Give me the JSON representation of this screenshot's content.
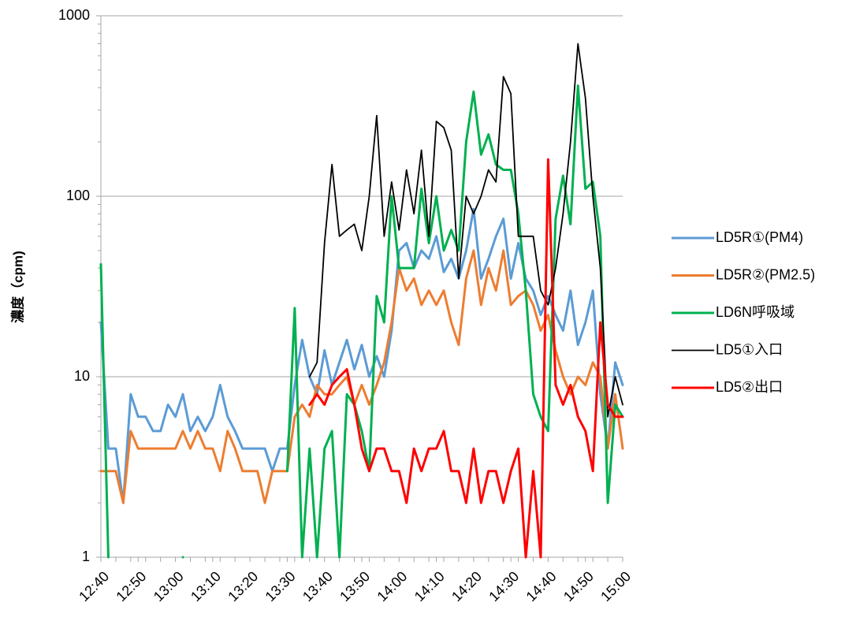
{
  "chart_data": {
    "type": "line",
    "y_label": "濃度（cpm)",
    "log_scale": true,
    "grid": true,
    "legend": "right",
    "ylim": [
      1,
      1000
    ],
    "yticks": [
      1,
      10,
      100,
      1000
    ],
    "categories": [
      "12:40",
      null,
      null,
      null,
      null,
      "12:50",
      null,
      null,
      null,
      null,
      "13:00",
      null,
      null,
      null,
      null,
      "13:10",
      null,
      null,
      null,
      null,
      "13:20",
      null,
      null,
      null,
      null,
      "13:30",
      null,
      null,
      null,
      null,
      "13:40",
      null,
      null,
      null,
      null,
      "13:50",
      null,
      null,
      null,
      null,
      "14:00",
      null,
      null,
      null,
      null,
      "14:10",
      null,
      null,
      null,
      null,
      "14:20",
      null,
      null,
      null,
      null,
      "14:30",
      null,
      null,
      null,
      null,
      "14:40",
      null,
      null,
      null,
      null,
      "14:50",
      null,
      null,
      null,
      null,
      "15:00"
    ],
    "series": [
      {
        "name": "LD5R①(PM4)",
        "color": "#5b9bd5",
        "values": [
          20,
          4,
          4,
          2,
          8,
          6,
          6,
          5,
          5,
          7,
          6,
          8,
          5,
          6,
          5,
          6,
          9,
          6,
          5,
          4,
          4,
          4,
          4,
          3,
          4,
          4,
          9,
          16,
          10,
          8,
          14,
          9,
          12,
          16,
          11,
          15,
          10,
          13,
          10,
          18,
          50,
          55,
          40,
          50,
          45,
          60,
          38,
          45,
          35,
          50,
          85,
          35,
          45,
          60,
          75,
          35,
          55,
          35,
          30,
          22,
          28,
          22,
          18,
          30,
          15,
          20,
          30,
          8,
          4,
          12,
          9
        ]
      },
      {
        "name": "LD5R②(PM2.5)",
        "color": "#ed7d31",
        "values": [
          3,
          3,
          3,
          2,
          5,
          4,
          4,
          4,
          4,
          4,
          4,
          5,
          4,
          5,
          4,
          4,
          3,
          5,
          4,
          3,
          3,
          3,
          2,
          3,
          3,
          3,
          6,
          7,
          6,
          9,
          8,
          8,
          9,
          10,
          7,
          9,
          7,
          9,
          12,
          20,
          40,
          30,
          35,
          25,
          30,
          25,
          30,
          20,
          15,
          35,
          50,
          25,
          40,
          30,
          50,
          25,
          28,
          30,
          25,
          18,
          22,
          14,
          10,
          8,
          10,
          9,
          12,
          10,
          4,
          8,
          4
        ]
      },
      {
        "name": "LD6N呼吸域",
        "color": "#00b050",
        "values": [
          42,
          1,
          null,
          null,
          null,
          null,
          null,
          null,
          null,
          null,
          null,
          1,
          null,
          null,
          null,
          null,
          null,
          null,
          null,
          null,
          null,
          null,
          null,
          null,
          null,
          3,
          24,
          1,
          4,
          1,
          4,
          5,
          1,
          8,
          7,
          5,
          3,
          28,
          20,
          100,
          40,
          40,
          40,
          110,
          55,
          100,
          50,
          65,
          50,
          200,
          380,
          170,
          220,
          150,
          140,
          140,
          80,
          30,
          8,
          6,
          5,
          75,
          130,
          70,
          410,
          110,
          120,
          60,
          2,
          7,
          6
        ]
      },
      {
        "name": "LD5①入口",
        "color": "#000000",
        "values": [
          null,
          null,
          null,
          null,
          null,
          null,
          null,
          null,
          null,
          null,
          null,
          null,
          null,
          null,
          null,
          null,
          null,
          null,
          null,
          null,
          null,
          null,
          null,
          null,
          null,
          null,
          null,
          null,
          10,
          12,
          55,
          150,
          60,
          65,
          70,
          50,
          100,
          280,
          60,
          120,
          65,
          140,
          80,
          180,
          60,
          260,
          240,
          180,
          35,
          100,
          80,
          100,
          140,
          120,
          460,
          370,
          60,
          60,
          60,
          30,
          25,
          40,
          80,
          200,
          700,
          350,
          100,
          40,
          6,
          10,
          7
        ]
      },
      {
        "name": "LD5②出口",
        "color": "#ff0000",
        "values": [
          null,
          null,
          null,
          null,
          null,
          null,
          null,
          null,
          null,
          null,
          null,
          null,
          null,
          null,
          null,
          null,
          null,
          null,
          null,
          null,
          null,
          null,
          null,
          null,
          null,
          null,
          null,
          null,
          7,
          8,
          7,
          9,
          10,
          11,
          7,
          4,
          3,
          4,
          4,
          3,
          3,
          2,
          4,
          3,
          4,
          4,
          5,
          3,
          3,
          2,
          4,
          2,
          3,
          3,
          2,
          3,
          4,
          1,
          3,
          1,
          160,
          9,
          7,
          9,
          6,
          5,
          3,
          20,
          7,
          6,
          6
        ]
      }
    ]
  }
}
